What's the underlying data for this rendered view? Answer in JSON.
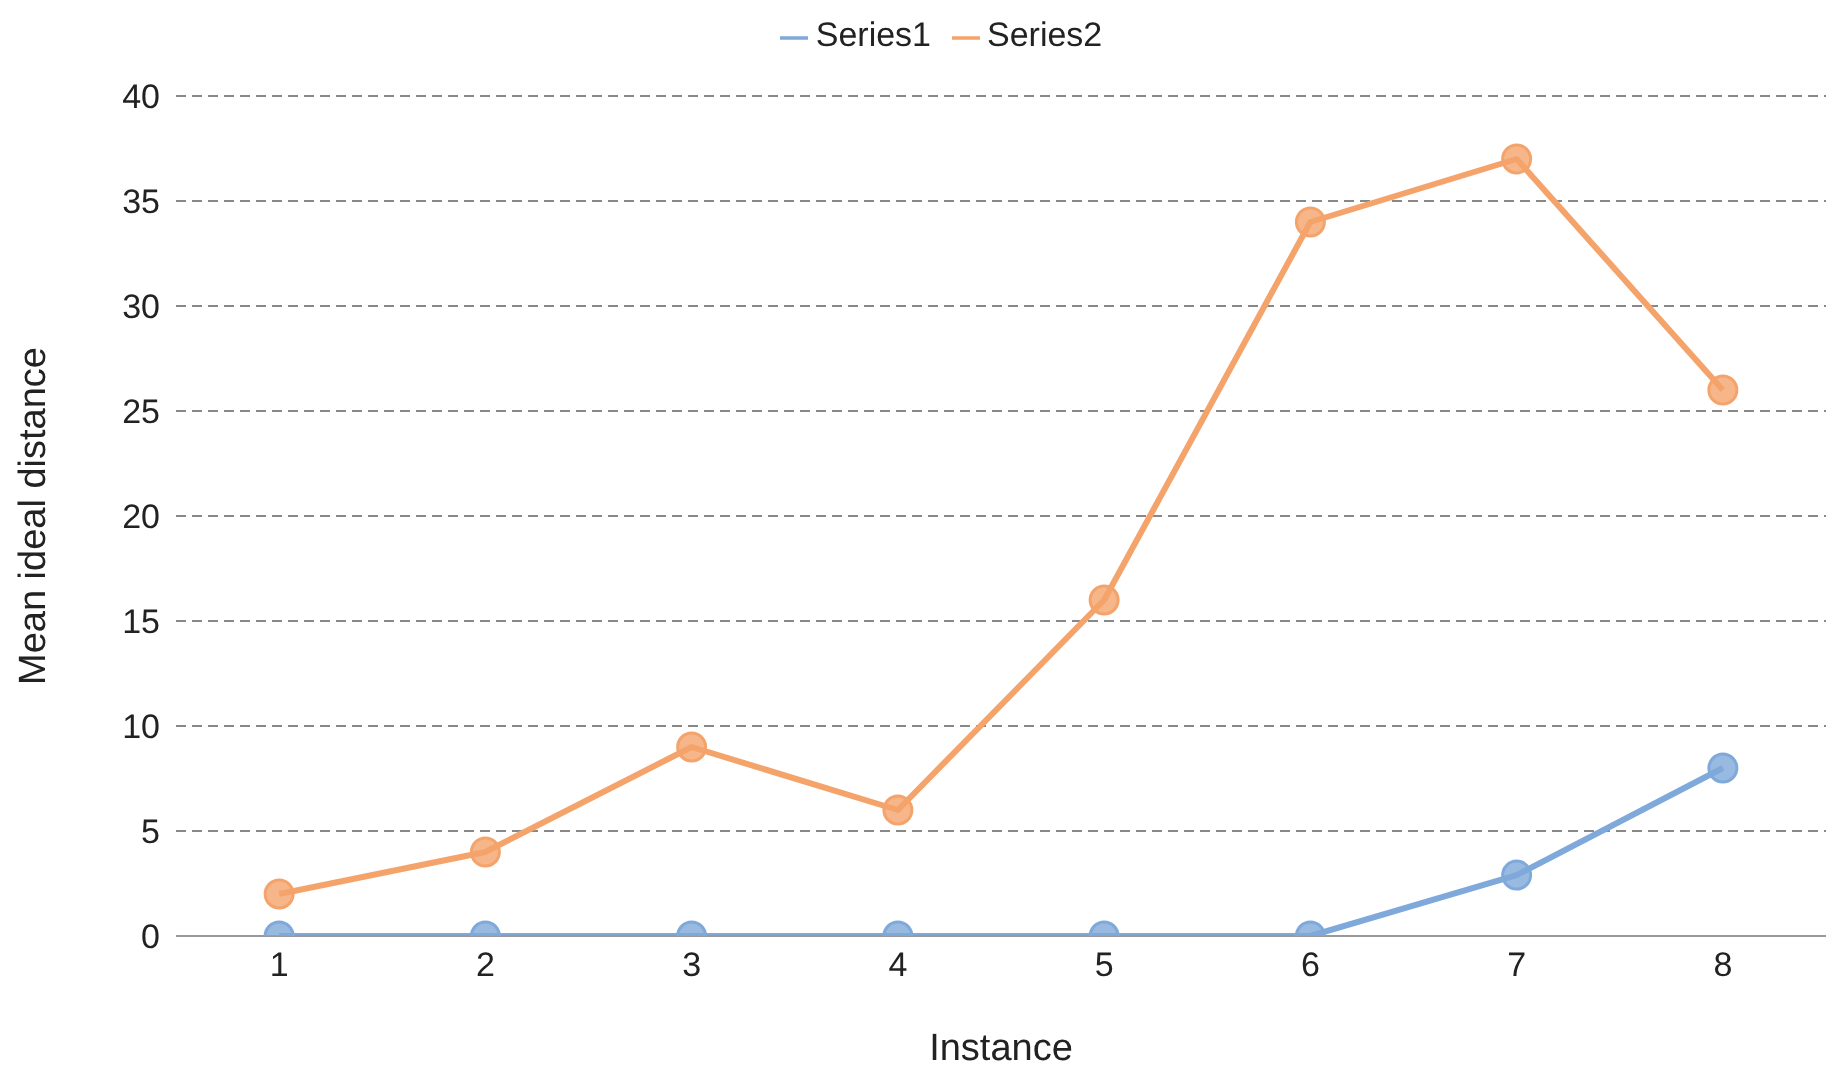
{
  "chart_data": {
    "type": "line",
    "categories": [
      "1",
      "2",
      "3",
      "4",
      "5",
      "6",
      "7",
      "8"
    ],
    "series": [
      {
        "name": "Series1",
        "color": "#7ea9da",
        "values": [
          0,
          0,
          0,
          0,
          0,
          0,
          2.9,
          8
        ]
      },
      {
        "name": "Series2",
        "color": "#f4a46b",
        "values": [
          2,
          4,
          9,
          6,
          16,
          34,
          37,
          26
        ]
      }
    ],
    "xlabel": "Instance",
    "ylabel": "Mean ideal distance",
    "ylim": [
      0,
      40
    ],
    "yticks": [
      0,
      5,
      10,
      15,
      20,
      25,
      30,
      35,
      40
    ],
    "grid": "y",
    "legend": "top",
    "marker": "circle",
    "line_style": "solid"
  }
}
